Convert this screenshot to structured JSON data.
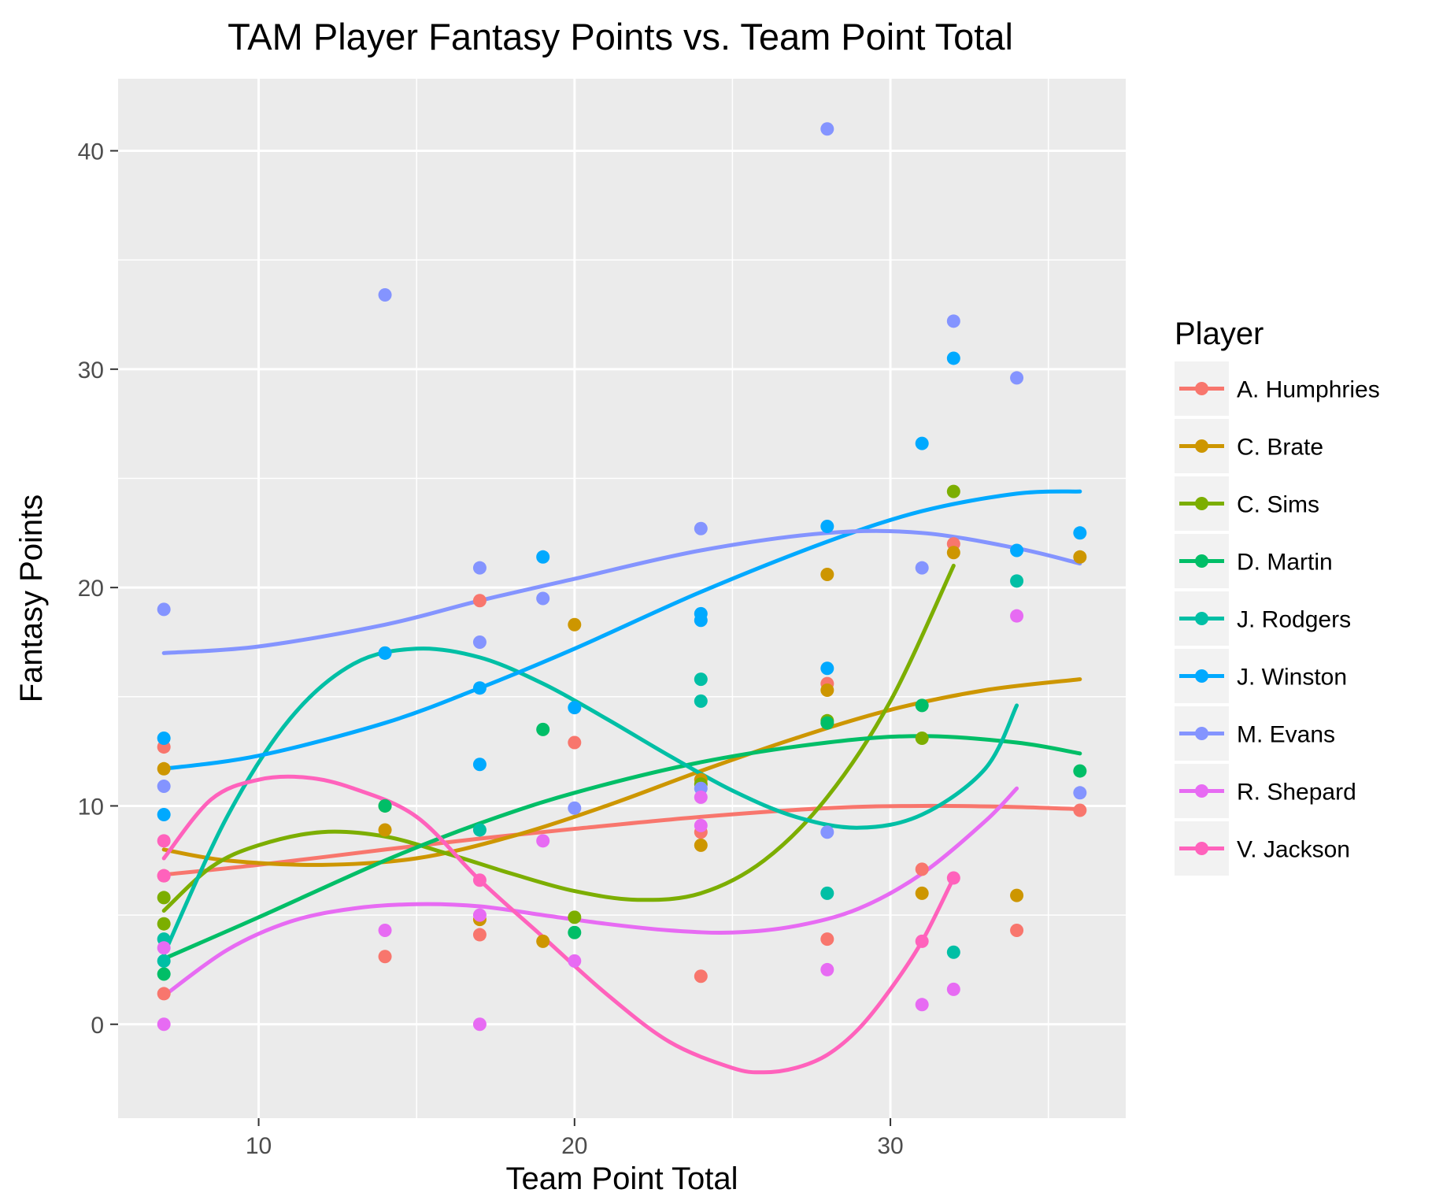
{
  "chart_data": {
    "type": "scatter",
    "title": "TAM Player Fantasy Points vs. Team Point Total",
    "xlabel": "Team Point Total",
    "ylabel": "Fantasy Points",
    "xlim": [
      5.55,
      37.45
    ],
    "ylim": [
      -4.3,
      43.3
    ],
    "x_ticks": [
      10,
      20,
      30
    ],
    "x_tick_labels": [
      "10",
      "20",
      "30"
    ],
    "y_ticks": [
      0,
      10,
      20,
      30,
      40
    ],
    "y_tick_labels": [
      "0",
      "10",
      "20",
      "30",
      "40"
    ],
    "grid": true,
    "legend": {
      "title": "Player",
      "position": "right"
    },
    "series": [
      {
        "name": "A. Humphries",
        "color": "#F8766D",
        "points": [
          [
            7,
            12.7
          ],
          [
            7,
            6.8
          ],
          [
            7,
            1.4
          ],
          [
            14,
            3.1
          ],
          [
            17,
            19.4
          ],
          [
            17,
            4.1
          ],
          [
            20,
            12.9
          ],
          [
            24,
            8.8
          ],
          [
            24,
            2.2
          ],
          [
            28,
            15.6
          ],
          [
            28,
            3.9
          ],
          [
            31,
            7.1
          ],
          [
            32,
            22.0
          ],
          [
            34,
            4.3
          ],
          [
            36,
            9.8
          ]
        ],
        "trend": [
          [
            7,
            6.85
          ],
          [
            10,
            7.3
          ],
          [
            14,
            8.0
          ],
          [
            17,
            8.5
          ],
          [
            20,
            8.95
          ],
          [
            24,
            9.5
          ],
          [
            28,
            9.9
          ],
          [
            31,
            10.0
          ],
          [
            34,
            9.95
          ],
          [
            36,
            9.85
          ]
        ]
      },
      {
        "name": "C. Brate",
        "color": "#CD9600",
        "points": [
          [
            7,
            11.7
          ],
          [
            14,
            8.9
          ],
          [
            17,
            4.8
          ],
          [
            19,
            3.8
          ],
          [
            20,
            18.3
          ],
          [
            24,
            11.2
          ],
          [
            24,
            8.2
          ],
          [
            28,
            20.6
          ],
          [
            28,
            15.3
          ],
          [
            31,
            6.0
          ],
          [
            32,
            21.6
          ],
          [
            34,
            5.9
          ],
          [
            36,
            21.4
          ]
        ],
        "trend": [
          [
            7,
            8.0
          ],
          [
            9,
            7.5
          ],
          [
            12,
            7.3
          ],
          [
            15,
            7.6
          ],
          [
            18,
            8.6
          ],
          [
            21,
            10.0
          ],
          [
            24,
            11.6
          ],
          [
            27,
            13.1
          ],
          [
            30,
            14.4
          ],
          [
            33,
            15.3
          ],
          [
            36,
            15.8
          ]
        ]
      },
      {
        "name": "C. Sims",
        "color": "#7CAE00",
        "points": [
          [
            7,
            5.8
          ],
          [
            7,
            4.6
          ],
          [
            14,
            10.0
          ],
          [
            20,
            4.9
          ],
          [
            24,
            11.0
          ],
          [
            28,
            13.9
          ],
          [
            31,
            13.1
          ],
          [
            32,
            24.4
          ]
        ],
        "trend": [
          [
            7,
            5.2
          ],
          [
            8.5,
            7.2
          ],
          [
            10,
            8.2
          ],
          [
            12,
            8.8
          ],
          [
            14,
            8.6
          ],
          [
            16,
            7.8
          ],
          [
            18,
            6.9
          ],
          [
            20,
            6.1
          ],
          [
            22,
            5.7
          ],
          [
            24,
            6.0
          ],
          [
            26,
            7.5
          ],
          [
            28,
            10.4
          ],
          [
            30,
            14.8
          ],
          [
            32,
            21.0
          ]
        ]
      },
      {
        "name": "D. Martin",
        "color": "#00BE67",
        "points": [
          [
            7,
            2.3
          ],
          [
            14,
            10.0
          ],
          [
            19,
            13.5
          ],
          [
            20,
            4.2
          ],
          [
            28,
            13.8
          ],
          [
            31,
            14.6
          ],
          [
            36,
            11.6
          ]
        ],
        "trend": [
          [
            7,
            3.0
          ],
          [
            10,
            4.9
          ],
          [
            14,
            7.5
          ],
          [
            17,
            9.2
          ],
          [
            20,
            10.6
          ],
          [
            24,
            12.0
          ],
          [
            28,
            12.9
          ],
          [
            31,
            13.2
          ],
          [
            34,
            12.9
          ],
          [
            36,
            12.4
          ]
        ]
      },
      {
        "name": "J. Rodgers",
        "color": "#00BFA5",
        "points": [
          [
            7,
            3.9
          ],
          [
            7,
            2.9
          ],
          [
            14,
            17.0
          ],
          [
            17,
            8.9
          ],
          [
            24,
            15.8
          ],
          [
            24,
            14.8
          ],
          [
            28,
            6.0
          ],
          [
            32,
            3.3
          ],
          [
            34,
            20.3
          ]
        ],
        "trend": [
          [
            7,
            3.2
          ],
          [
            9,
            9.5
          ],
          [
            11,
            14.0
          ],
          [
            13,
            16.5
          ],
          [
            15,
            17.2
          ],
          [
            17,
            16.8
          ],
          [
            19,
            15.6
          ],
          [
            21,
            14.0
          ],
          [
            23,
            12.3
          ],
          [
            25,
            10.7
          ],
          [
            27,
            9.5
          ],
          [
            29,
            9.0
          ],
          [
            31,
            9.6
          ],
          [
            33,
            11.7
          ],
          [
            34,
            14.6
          ]
        ]
      },
      {
        "name": "J. Winston",
        "color": "#00A9FF",
        "points": [
          [
            7,
            13.1
          ],
          [
            7,
            9.6
          ],
          [
            14,
            17.0
          ],
          [
            17,
            15.4
          ],
          [
            17,
            11.9
          ],
          [
            19,
            21.4
          ],
          [
            20,
            14.5
          ],
          [
            24,
            18.8
          ],
          [
            24,
            18.5
          ],
          [
            28,
            22.8
          ],
          [
            28,
            16.3
          ],
          [
            31,
            26.6
          ],
          [
            32,
            30.5
          ],
          [
            34,
            21.7
          ],
          [
            36,
            22.5
          ]
        ],
        "trend": [
          [
            7,
            11.7
          ],
          [
            10,
            12.3
          ],
          [
            14,
            13.8
          ],
          [
            17,
            15.4
          ],
          [
            20,
            17.2
          ],
          [
            24,
            19.8
          ],
          [
            28,
            22.1
          ],
          [
            31,
            23.5
          ],
          [
            34,
            24.3
          ],
          [
            36,
            24.4
          ]
        ]
      },
      {
        "name": "M. Evans",
        "color": "#8494FF",
        "points": [
          [
            7,
            19.0
          ],
          [
            7,
            10.9
          ],
          [
            14,
            33.4
          ],
          [
            17,
            20.9
          ],
          [
            17,
            17.5
          ],
          [
            19,
            19.5
          ],
          [
            20,
            9.9
          ],
          [
            24,
            22.7
          ],
          [
            24,
            10.8
          ],
          [
            28,
            41.0
          ],
          [
            28,
            8.8
          ],
          [
            31,
            20.9
          ],
          [
            32,
            32.2
          ],
          [
            34,
            29.6
          ],
          [
            36,
            10.6
          ]
        ],
        "trend": [
          [
            7,
            17.0
          ],
          [
            10,
            17.3
          ],
          [
            14,
            18.3
          ],
          [
            17,
            19.4
          ],
          [
            20,
            20.4
          ],
          [
            24,
            21.7
          ],
          [
            28,
            22.5
          ],
          [
            31,
            22.5
          ],
          [
            34,
            21.8
          ],
          [
            36,
            21.1
          ]
        ]
      },
      {
        "name": "R. Shepard",
        "color": "#E76BF3",
        "points": [
          [
            7,
            3.5
          ],
          [
            7,
            0.0
          ],
          [
            14,
            4.3
          ],
          [
            17,
            5.0
          ],
          [
            17,
            0.0
          ],
          [
            19,
            8.4
          ],
          [
            20,
            2.9
          ],
          [
            24,
            10.4
          ],
          [
            24,
            9.1
          ],
          [
            28,
            2.5
          ],
          [
            31,
            0.9
          ],
          [
            32,
            1.6
          ],
          [
            34,
            18.7
          ]
        ],
        "trend": [
          [
            7,
            1.3
          ],
          [
            9,
            3.4
          ],
          [
            11,
            4.7
          ],
          [
            13,
            5.3
          ],
          [
            15,
            5.5
          ],
          [
            17,
            5.4
          ],
          [
            19,
            5.0
          ],
          [
            21,
            4.6
          ],
          [
            23,
            4.3
          ],
          [
            25,
            4.2
          ],
          [
            27,
            4.5
          ],
          [
            29,
            5.3
          ],
          [
            31,
            6.9
          ],
          [
            33,
            9.3
          ],
          [
            34,
            10.8
          ]
        ]
      },
      {
        "name": "V. Jackson",
        "color": "#FF62BC",
        "points": [
          [
            7,
            8.4
          ],
          [
            7,
            6.8
          ],
          [
            17,
            6.6
          ],
          [
            31,
            3.8
          ],
          [
            32,
            6.7
          ]
        ],
        "trend": [
          [
            7,
            7.6
          ],
          [
            8.5,
            10.3
          ],
          [
            10,
            11.2
          ],
          [
            11.5,
            11.3
          ],
          [
            13,
            10.8
          ],
          [
            15,
            9.5
          ],
          [
            17,
            6.6
          ],
          [
            19,
            4.0
          ],
          [
            21,
            1.4
          ],
          [
            23,
            -0.8
          ],
          [
            25,
            -2.0
          ],
          [
            26,
            -2.2
          ],
          [
            27,
            -2.0
          ],
          [
            28,
            -1.4
          ],
          [
            29,
            -0.2
          ],
          [
            30,
            1.6
          ],
          [
            31,
            3.8
          ],
          [
            32,
            6.7
          ]
        ]
      }
    ]
  }
}
